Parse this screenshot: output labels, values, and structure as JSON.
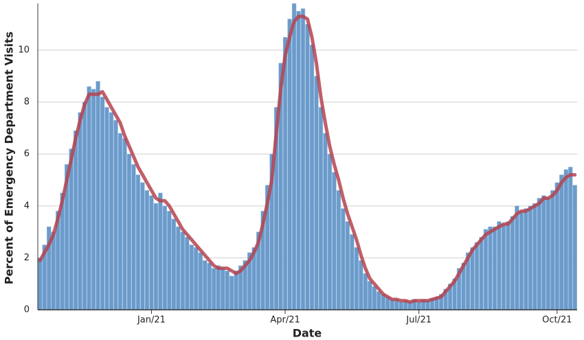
{
  "chart_data": {
    "type": "bar",
    "x_label": "Date",
    "y_label": "Percent of Emergency Department Visits",
    "categories": [
      null,
      null,
      null,
      null,
      null,
      null,
      null,
      null,
      null,
      null,
      null,
      null,
      null,
      null,
      null,
      null,
      null,
      null,
      null,
      null,
      null,
      null,
      null,
      null,
      null,
      "Jan/21",
      null,
      null,
      null,
      null,
      null,
      null,
      null,
      null,
      null,
      null,
      null,
      null,
      null,
      null,
      null,
      null,
      null,
      null,
      null,
      null,
      null,
      null,
      null,
      null,
      null,
      null,
      null,
      null,
      null,
      "Apr/21",
      null,
      null,
      null,
      null,
      null,
      null,
      null,
      null,
      null,
      null,
      null,
      null,
      null,
      null,
      null,
      null,
      null,
      null,
      null,
      null,
      null,
      null,
      null,
      null,
      null,
      null,
      null,
      null,
      null,
      "Jul/21",
      null,
      null,
      null,
      null,
      null,
      null,
      null,
      null,
      null,
      null,
      null,
      null,
      null,
      null,
      null,
      null,
      null,
      null,
      null,
      null,
      null,
      null,
      null,
      null,
      null,
      null,
      null,
      null,
      null,
      null,
      "Oct/21",
      null,
      null,
      null,
      null
    ],
    "series": [
      {
        "type": "bar",
        "color": "#6b9bcb",
        "values": [
          2.0,
          2.5,
          3.2,
          3.0,
          3.8,
          4.5,
          5.6,
          6.2,
          6.9,
          7.6,
          8.0,
          8.6,
          8.5,
          8.8,
          8.2,
          7.8,
          7.6,
          7.3,
          6.8,
          6.6,
          6.0,
          5.6,
          5.2,
          4.9,
          4.6,
          4.4,
          4.1,
          4.5,
          4.0,
          3.8,
          3.5,
          3.2,
          3.0,
          2.8,
          2.5,
          2.4,
          2.2,
          1.9,
          1.8,
          1.6,
          1.7,
          1.6,
          1.5,
          1.3,
          1.5,
          1.7,
          1.9,
          2.2,
          2.4,
          3.0,
          3.8,
          4.8,
          6.0,
          7.8,
          9.5,
          10.5,
          11.2,
          11.8,
          11.5,
          11.6,
          11.0,
          10.2,
          9.0,
          7.8,
          6.8,
          6.0,
          5.3,
          4.6,
          3.9,
          3.4,
          2.9,
          2.4,
          1.9,
          1.4,
          1.1,
          0.9,
          0.7,
          0.6,
          0.5,
          0.4,
          0.4,
          0.3,
          0.35,
          0.3,
          0.4,
          0.3,
          0.4,
          0.35,
          0.45,
          0.5,
          0.6,
          0.8,
          1.0,
          1.2,
          1.6,
          1.8,
          2.2,
          2.4,
          2.6,
          2.8,
          3.1,
          3.2,
          3.2,
          3.4,
          3.3,
          3.4,
          3.6,
          4.0,
          3.8,
          3.9,
          4.0,
          4.1,
          4.3,
          4.4,
          4.3,
          4.6,
          4.9,
          5.2,
          5.4,
          5.5,
          4.8
        ]
      },
      {
        "type": "line",
        "color": "#b5434f",
        "values": [
          1.9,
          2.2,
          2.5,
          2.9,
          3.5,
          4.2,
          5.0,
          5.8,
          6.6,
          7.3,
          7.9,
          8.3,
          8.3,
          8.3,
          8.4,
          8.1,
          7.8,
          7.5,
          7.2,
          6.7,
          6.3,
          5.9,
          5.5,
          5.2,
          4.9,
          4.6,
          4.3,
          4.2,
          4.2,
          4.0,
          3.7,
          3.4,
          3.1,
          2.9,
          2.7,
          2.5,
          2.3,
          2.1,
          1.9,
          1.7,
          1.6,
          1.6,
          1.6,
          1.5,
          1.4,
          1.5,
          1.7,
          1.9,
          2.2,
          2.6,
          3.3,
          4.1,
          5.0,
          6.8,
          8.5,
          9.8,
          10.5,
          11.1,
          11.3,
          11.3,
          11.2,
          10.5,
          9.5,
          8.2,
          7.2,
          6.3,
          5.6,
          5.0,
          4.3,
          3.7,
          3.2,
          2.7,
          2.1,
          1.6,
          1.2,
          1.0,
          0.8,
          0.6,
          0.5,
          0.4,
          0.4,
          0.35,
          0.35,
          0.3,
          0.35,
          0.35,
          0.35,
          0.35,
          0.4,
          0.45,
          0.5,
          0.7,
          0.9,
          1.1,
          1.4,
          1.7,
          2.0,
          2.3,
          2.5,
          2.7,
          2.9,
          3.0,
          3.1,
          3.2,
          3.3,
          3.3,
          3.5,
          3.7,
          3.8,
          3.8,
          3.9,
          4.0,
          4.1,
          4.3,
          4.3,
          4.4,
          4.6,
          4.9,
          5.1,
          5.2,
          5.2
        ]
      }
    ],
    "ylim": [
      0,
      11.8
    ],
    "yticks": [
      0,
      2,
      4,
      6,
      8,
      10
    ],
    "grid": true
  }
}
